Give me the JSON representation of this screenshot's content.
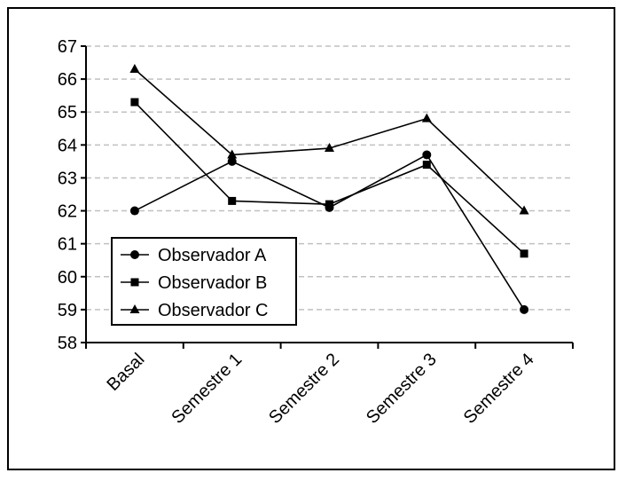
{
  "chart_data": {
    "type": "line",
    "title": "",
    "xlabel": "",
    "ylabel": "",
    "categories": [
      "Basal",
      "Semestre 1",
      "Semestre 2",
      "Semestre 3",
      "Semestre 4"
    ],
    "ylim": [
      58,
      67
    ],
    "yticks": [
      58,
      59,
      60,
      61,
      62,
      63,
      64,
      65,
      66,
      67
    ],
    "grid": true,
    "legend_position": "lower-left",
    "series": [
      {
        "name": "Observador A",
        "marker": "circle",
        "values": [
          62.0,
          63.5,
          62.1,
          63.7,
          59.0
        ]
      },
      {
        "name": "Observador B",
        "marker": "square",
        "values": [
          65.3,
          62.3,
          62.2,
          63.4,
          60.7
        ]
      },
      {
        "name": "Observador C",
        "marker": "triangle",
        "values": [
          66.3,
          63.7,
          63.9,
          64.8,
          62.0
        ]
      }
    ],
    "colors": {
      "line": "#000000",
      "grid": "#c0c0c0"
    }
  }
}
